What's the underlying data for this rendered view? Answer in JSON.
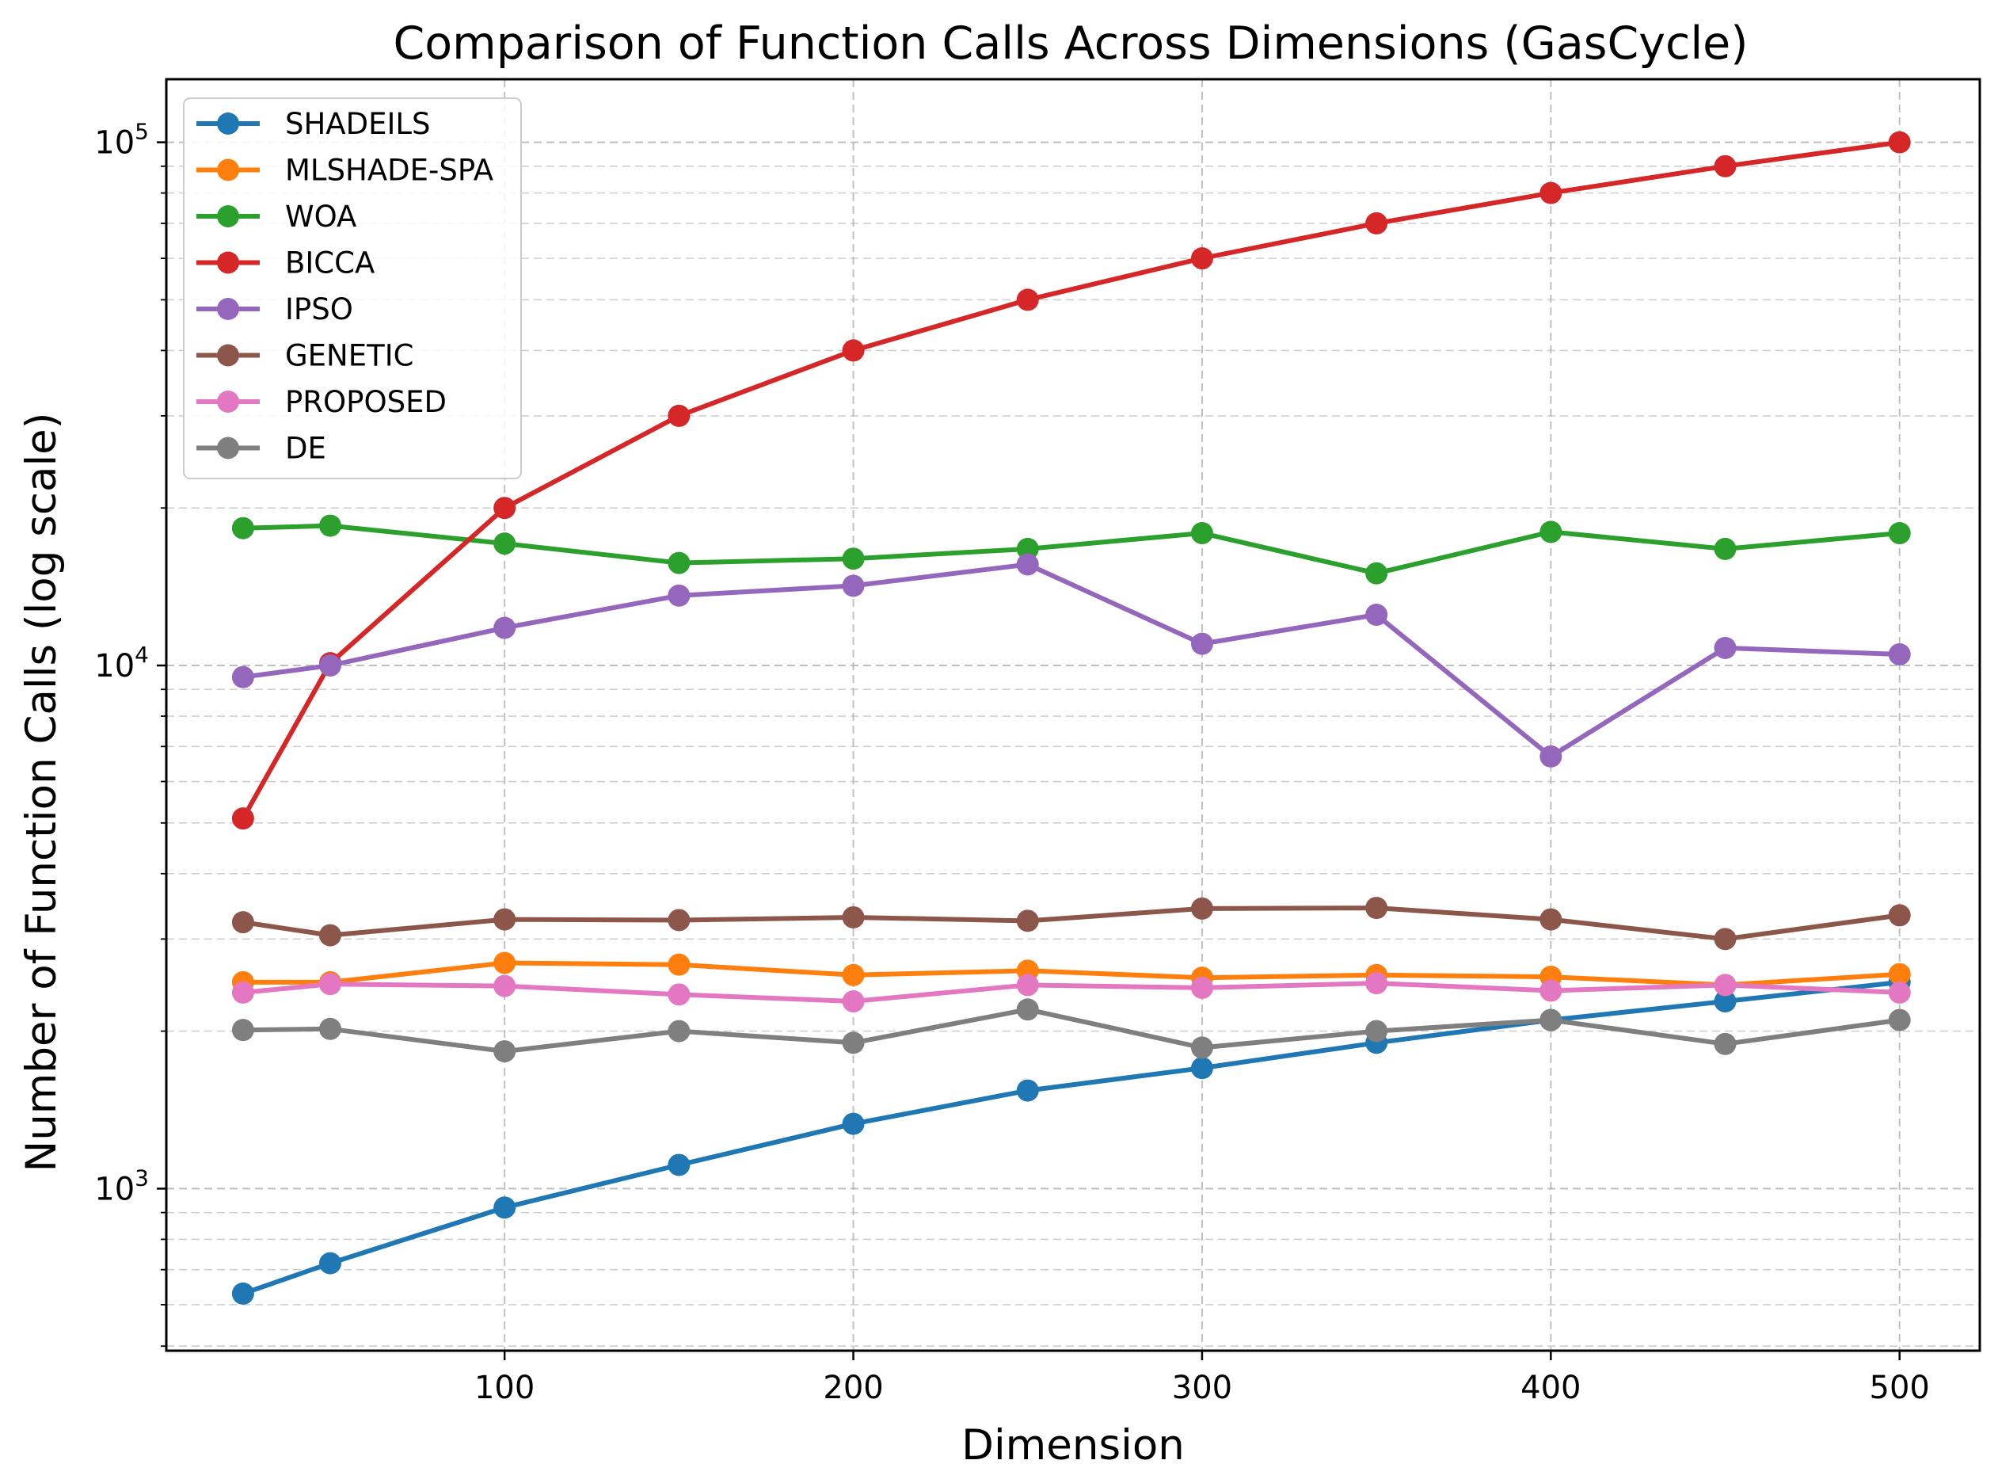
{
  "chart_data": {
    "type": "line",
    "title": "Comparison of Function Calls Across Dimensions (GasCycle)",
    "xlabel": "Dimension",
    "ylabel": "Number of Function Calls (log scale)",
    "yscale": "log",
    "xlim": [
      3,
      523
    ],
    "ylim": [
      490,
      132000
    ],
    "x_ticks": [
      100,
      200,
      300,
      400,
      500
    ],
    "y_ticks": [
      {
        "value": 1000,
        "base": "10",
        "exp": "3"
      },
      {
        "value": 10000,
        "base": "10",
        "exp": "4"
      },
      {
        "value": 100000,
        "base": "10",
        "exp": "5"
      }
    ],
    "grid": true,
    "legend_position": "top-left",
    "x": [
      25,
      50,
      100,
      150,
      200,
      250,
      300,
      350,
      400,
      450,
      500
    ],
    "series": [
      {
        "name": "SHADEILS",
        "color": "#1f77b4",
        "values": [
          630,
          720,
          920,
          1110,
          1330,
          1540,
          1700,
          1900,
          2100,
          2280,
          2480
        ]
      },
      {
        "name": "MLSHADE-SPA",
        "color": "#ff7f0e",
        "values": [
          2480,
          2480,
          2700,
          2680,
          2560,
          2610,
          2530,
          2560,
          2540,
          2450,
          2570
        ]
      },
      {
        "name": "WOA",
        "color": "#2ca02c",
        "values": [
          18300,
          18500,
          17100,
          15700,
          16000,
          16700,
          17900,
          15000,
          18000,
          16700,
          17900
        ]
      },
      {
        "name": "BICCA",
        "color": "#d62728",
        "values": [
          5100,
          10100,
          20000,
          30000,
          40000,
          50000,
          60000,
          70000,
          80000,
          90000,
          100000
        ]
      },
      {
        "name": "IPSO",
        "color": "#9467bd",
        "values": [
          9500,
          10000,
          11800,
          13600,
          14200,
          15600,
          11000,
          12500,
          6700,
          10800,
          10500
        ]
      },
      {
        "name": "GENETIC",
        "color": "#8c564b",
        "values": [
          3230,
          3050,
          3270,
          3260,
          3300,
          3250,
          3430,
          3440,
          3270,
          3000,
          3330
        ]
      },
      {
        "name": "PROPOSED",
        "color": "#e377c2",
        "values": [
          2370,
          2460,
          2440,
          2350,
          2280,
          2450,
          2420,
          2470,
          2390,
          2450,
          2370
        ]
      },
      {
        "name": "DE",
        "color": "#7f7f7f",
        "values": [
          2010,
          2020,
          1830,
          2000,
          1900,
          2200,
          1860,
          2000,
          2100,
          1890,
          2100
        ]
      }
    ]
  }
}
